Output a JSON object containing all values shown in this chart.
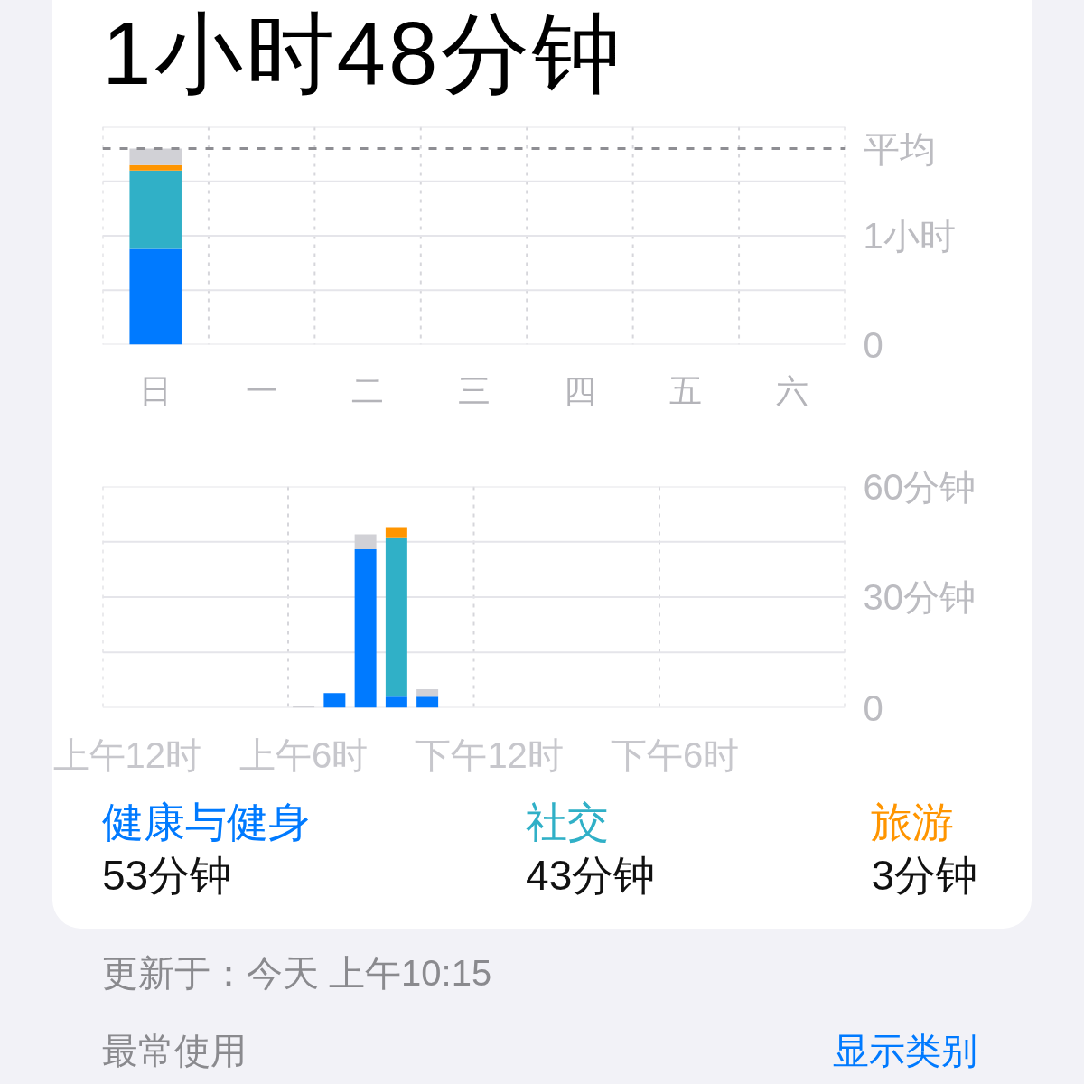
{
  "chart_data": [
    {
      "type": "bar",
      "title": "1小时48分钟",
      "stacked": true,
      "categories": [
        "日",
        "一",
        "二",
        "三",
        "四",
        "五",
        "六"
      ],
      "series": [
        {
          "color": "#007aff",
          "values": [
            0.88,
            null,
            null,
            null,
            null,
            null,
            null
          ]
        },
        {
          "color": "#30b0c7",
          "values": [
            0.72,
            null,
            null,
            null,
            null,
            null,
            null
          ]
        },
        {
          "color": "#ff9500",
          "values": [
            0.05,
            null,
            null,
            null,
            null,
            null,
            null
          ]
        },
        {
          "color": "#d1d1d6",
          "values": [
            0.15,
            null,
            null,
            null,
            null,
            null,
            null
          ]
        }
      ],
      "ylim": [
        0,
        2
      ],
      "yticks": [
        0,
        {
          "value": 0.5,
          "label": null
        },
        {
          "value": 1,
          "label": "1小时"
        },
        {
          "value": 1.5,
          "label": null
        },
        {
          "value": 2,
          "label": null
        }
      ],
      "ref_lines": [
        {
          "axis": "y",
          "value": 1.8,
          "label": "平均",
          "color": "#8e8e93",
          "line_style": "dashed"
        }
      ],
      "grid": true
    },
    {
      "type": "bar",
      "stacked": true,
      "categories": [
        "上午12时",
        null,
        null,
        null,
        null,
        null,
        "上午6时",
        null,
        null,
        null,
        null,
        null,
        "下午12时",
        null,
        null,
        null,
        null,
        null,
        "下午6时",
        null,
        null,
        null,
        null,
        null
      ],
      "series": [
        {
          "color": "#007aff",
          "values": [
            null,
            null,
            null,
            null,
            null,
            null,
            null,
            4,
            43,
            3,
            3,
            null,
            null,
            null,
            null,
            null,
            null,
            null,
            null,
            null,
            null,
            null,
            null,
            null
          ]
        },
        {
          "color": "#30b0c7",
          "values": [
            null,
            null,
            null,
            null,
            null,
            null,
            null,
            null,
            null,
            43,
            null,
            null,
            null,
            null,
            null,
            null,
            null,
            null,
            null,
            null,
            null,
            null,
            null,
            null
          ]
        },
        {
          "color": "#ff9500",
          "values": [
            null,
            null,
            null,
            null,
            null,
            null,
            null,
            null,
            null,
            3,
            null,
            null,
            null,
            null,
            null,
            null,
            null,
            null,
            null,
            null,
            null,
            null,
            null,
            null
          ]
        },
        {
          "color": "#d1d1d6",
          "values": [
            null,
            null,
            null,
            null,
            null,
            null,
            0.5,
            null,
            4,
            null,
            2,
            null,
            null,
            null,
            null,
            null,
            null,
            null,
            null,
            null,
            null,
            null,
            null,
            null
          ]
        }
      ],
      "ylim": [
        0,
        60
      ],
      "yticks": [
        0,
        {
          "value": 15,
          "label": null
        },
        {
          "value": 30,
          "label": "30分钟"
        },
        {
          "value": 45,
          "label": null
        },
        {
          "value": 60,
          "label": "60分钟"
        }
      ],
      "grid": true
    },
    {
      "type": "other",
      "categories": [
        "健康与健身",
        "社交",
        "旅游"
      ],
      "colors": [
        "#007aff",
        "#30b0c7",
        "#ff9500"
      ],
      "value_labels": [
        "53分钟",
        "43分钟",
        "3分钟"
      ],
      "annotations": [
        "更新于：今天 上午10:15",
        "最常使用",
        "显示类别"
      ]
    }
  ]
}
